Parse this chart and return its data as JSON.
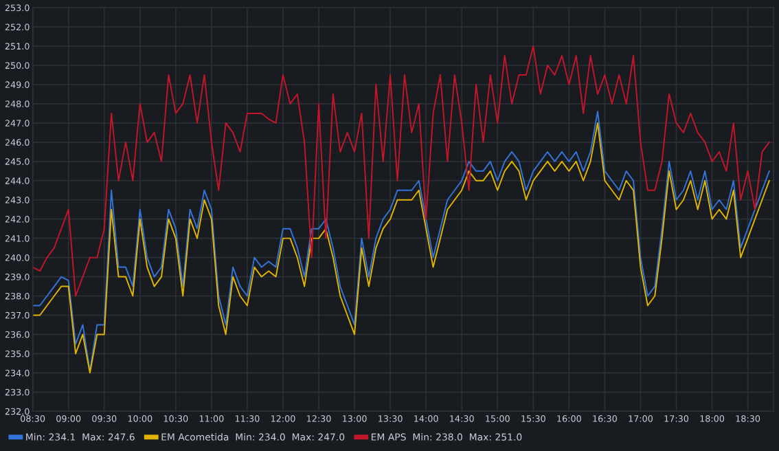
{
  "chart_data": {
    "type": "line",
    "x": [
      8.5,
      8.6,
      8.7,
      8.8,
      8.9,
      9.0,
      9.1,
      9.2,
      9.3,
      9.4,
      9.5,
      9.6,
      9.7,
      9.8,
      9.9,
      10.0,
      10.1,
      10.2,
      10.3,
      10.4,
      10.5,
      10.6,
      10.7,
      10.8,
      10.9,
      11.0,
      11.1,
      11.2,
      11.3,
      11.4,
      11.5,
      11.6,
      11.7,
      11.8,
      11.9,
      12.0,
      12.1,
      12.2,
      12.3,
      12.4,
      12.5,
      12.6,
      12.7,
      12.8,
      12.9,
      13.0,
      13.1,
      13.2,
      13.3,
      13.4,
      13.5,
      13.6,
      13.7,
      13.8,
      13.9,
      14.0,
      14.1,
      14.2,
      14.3,
      14.4,
      14.5,
      14.6,
      14.7,
      14.8,
      14.9,
      15.0,
      15.1,
      15.2,
      15.3,
      15.4,
      15.5,
      15.6,
      15.7,
      15.8,
      15.9,
      16.0,
      16.1,
      16.2,
      16.3,
      16.4,
      16.5,
      16.6,
      16.7,
      16.8,
      16.9,
      17.0,
      17.1,
      17.2,
      17.3,
      17.4,
      17.5,
      17.6,
      17.7,
      17.8,
      17.9,
      18.0,
      18.1,
      18.2,
      18.3,
      18.4,
      18.5,
      18.6,
      18.7,
      18.8
    ],
    "series": [
      {
        "name": "Min: 234.1  Max: 247.6",
        "color": "#3274d9",
        "values": [
          237.5,
          237.5,
          238,
          238.5,
          239,
          238.8,
          235.5,
          236.5,
          234.1,
          236.5,
          236.5,
          243.5,
          239.5,
          239.5,
          238.5,
          242.5,
          240,
          239,
          239.5,
          242.5,
          241.5,
          238.5,
          242.5,
          241.5,
          243.5,
          242.5,
          238,
          236.5,
          239.5,
          238.5,
          238,
          240,
          239.5,
          239.8,
          239.5,
          241.5,
          241.5,
          240.5,
          239,
          241.5,
          241.5,
          242,
          240.5,
          238.5,
          237.5,
          236.5,
          241,
          239,
          241,
          242,
          242.5,
          243.5,
          243.5,
          243.5,
          244,
          242,
          240,
          241.5,
          243,
          243.5,
          244,
          245,
          244.5,
          244.5,
          245,
          244,
          245,
          245.5,
          245,
          243.5,
          244.5,
          245,
          245.5,
          245,
          245.5,
          245,
          245.5,
          244.5,
          245.5,
          247.6,
          244.5,
          244,
          243.5,
          244.5,
          244,
          240,
          238,
          238.5,
          241.5,
          245,
          243,
          243.5,
          244.5,
          243,
          244.5,
          242.5,
          243,
          242.5,
          244,
          240.5,
          241.5,
          242.5,
          243.5,
          244.5
        ]
      },
      {
        "name": "EM Acometida  Min: 234.0  Max: 247.0",
        "color": "#e0b400",
        "values": [
          237,
          237,
          237.5,
          238,
          238.5,
          238.5,
          235,
          236,
          234.0,
          236,
          236,
          242.5,
          239,
          239,
          238,
          242,
          239.5,
          238.5,
          239,
          242,
          241,
          238,
          242,
          241,
          243,
          242,
          237.5,
          236,
          239,
          238,
          237.5,
          239.5,
          239,
          239.3,
          239,
          241,
          241,
          240,
          238.5,
          241,
          241,
          241.5,
          240,
          238,
          237,
          236,
          240.5,
          238.5,
          240.5,
          241.5,
          242,
          243,
          243,
          243,
          243.5,
          241.5,
          239.5,
          241,
          242.5,
          243,
          243.5,
          244.5,
          244,
          244,
          244.5,
          243.5,
          244.5,
          245,
          244.5,
          243,
          244,
          244.5,
          245,
          244.5,
          245,
          244.5,
          245,
          244,
          245,
          247.0,
          244,
          243.5,
          243,
          244,
          243.5,
          239.5,
          237.5,
          238,
          241,
          244.5,
          242.5,
          243,
          244,
          242.5,
          244,
          242,
          242.5,
          242,
          243.5,
          240,
          241,
          242,
          243,
          244
        ]
      },
      {
        "name": "EM APS  Min: 238.0  Max: 251.0",
        "color": "#c4162a",
        "values": [
          239.5,
          239.3,
          240,
          240.5,
          241.5,
          242.5,
          238.0,
          239,
          240,
          240,
          241.5,
          247.5,
          244,
          246,
          244,
          248,
          246,
          246.5,
          245,
          249.5,
          247.5,
          248,
          249.5,
          247,
          249.5,
          246,
          243.5,
          247,
          246.5,
          245.5,
          247.5,
          247.5,
          247.5,
          247.2,
          247,
          249.5,
          248,
          248.5,
          246,
          240,
          248,
          241,
          248.5,
          245.5,
          246.5,
          245.5,
          247.5,
          241,
          249,
          245,
          249.5,
          244,
          249.5,
          246.5,
          248,
          242,
          247.5,
          249.5,
          245,
          249.5,
          247,
          243.5,
          249,
          246,
          249.5,
          247,
          250.5,
          248,
          249.5,
          249.5,
          251.0,
          248.5,
          250,
          249.5,
          250.5,
          249,
          250.5,
          247.5,
          250.5,
          248.5,
          249.5,
          248,
          249.5,
          248,
          250.5,
          246,
          243.5,
          243.5,
          245,
          248.5,
          247,
          246.5,
          247.5,
          246.5,
          246,
          245,
          245.5,
          244.5,
          247,
          243,
          244.5,
          242.5,
          245.5,
          246
        ]
      }
    ],
    "xlim": [
      8.5,
      18.86
    ],
    "ylim": [
      232,
      253
    ],
    "xticks": [
      {
        "value": 8.5,
        "label": "08:30"
      },
      {
        "value": 9.0,
        "label": "09:00"
      },
      {
        "value": 9.5,
        "label": "09:30"
      },
      {
        "value": 10.0,
        "label": "10:00"
      },
      {
        "value": 10.5,
        "label": "10:30"
      },
      {
        "value": 11.0,
        "label": "11:00"
      },
      {
        "value": 11.5,
        "label": "11:30"
      },
      {
        "value": 12.0,
        "label": "12:00"
      },
      {
        "value": 12.5,
        "label": "12:30"
      },
      {
        "value": 13.0,
        "label": "13:00"
      },
      {
        "value": 13.5,
        "label": "13:30"
      },
      {
        "value": 14.0,
        "label": "14:00"
      },
      {
        "value": 14.5,
        "label": "14:30"
      },
      {
        "value": 15.0,
        "label": "15:00"
      },
      {
        "value": 15.5,
        "label": "15:30"
      },
      {
        "value": 16.0,
        "label": "16:00"
      },
      {
        "value": 16.5,
        "label": "16:30"
      },
      {
        "value": 17.0,
        "label": "17:00"
      },
      {
        "value": 17.5,
        "label": "17:30"
      },
      {
        "value": 18.0,
        "label": "18:00"
      },
      {
        "value": 18.5,
        "label": "18:30"
      }
    ],
    "yticks": [
      {
        "value": 232,
        "label": "232.0"
      },
      {
        "value": 233,
        "label": "233.0"
      },
      {
        "value": 234,
        "label": "234.0"
      },
      {
        "value": 235,
        "label": "235.0"
      },
      {
        "value": 236,
        "label": "236.0"
      },
      {
        "value": 237,
        "label": "237.0"
      },
      {
        "value": 238,
        "label": "238.0"
      },
      {
        "value": 239,
        "label": "239.0"
      },
      {
        "value": 240,
        "label": "240.0"
      },
      {
        "value": 241,
        "label": "241.0"
      },
      {
        "value": 242,
        "label": "242.0"
      },
      {
        "value": 243,
        "label": "243.0"
      },
      {
        "value": 244,
        "label": "244.0"
      },
      {
        "value": 245,
        "label": "245.0"
      },
      {
        "value": 246,
        "label": "246.0"
      },
      {
        "value": 247,
        "label": "247.0"
      },
      {
        "value": 248,
        "label": "248.0"
      },
      {
        "value": 249,
        "label": "249.0"
      },
      {
        "value": 250,
        "label": "250.0"
      },
      {
        "value": 251,
        "label": "251.0"
      },
      {
        "value": 252,
        "label": "252.0"
      },
      {
        "value": 253,
        "label": "253.0"
      }
    ],
    "grid": true,
    "legend": "bottom",
    "marker": "none",
    "line_style": "solid"
  }
}
